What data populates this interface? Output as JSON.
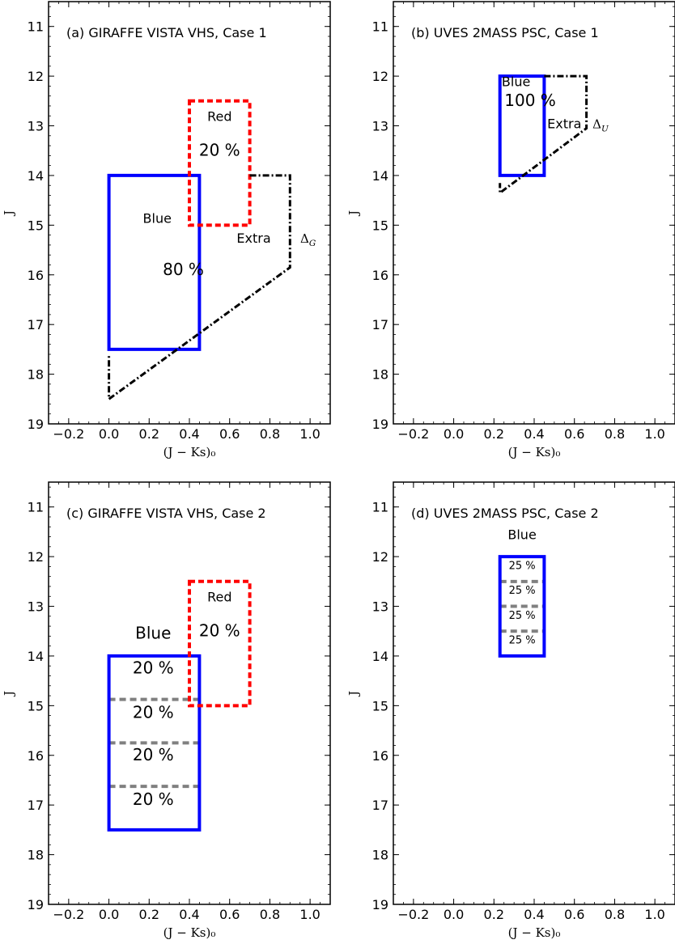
{
  "colors": {
    "blue": "#0000ff",
    "red": "#ff0000",
    "black": "#000000",
    "gray": "#808080"
  },
  "chart_data": [
    {
      "type": "region-diagram",
      "title": "(a) GIRAFFE VISTA VHS, Case 1",
      "xlabel": "(J − Ks)₀",
      "ylabel": "J",
      "xlim": [
        -0.3,
        1.1
      ],
      "ylim": [
        19,
        10.5
      ],
      "xticks": [
        -0.2,
        0.0,
        0.2,
        0.4,
        0.6,
        0.8,
        1.0
      ],
      "yticks": [
        11,
        12,
        13,
        14,
        15,
        16,
        17,
        18,
        19
      ],
      "regions": [
        {
          "name": "Blue",
          "color": "blue",
          "style": "solid",
          "points": [
            [
              0.0,
              14.0
            ],
            [
              0.45,
              14.0
            ],
            [
              0.45,
              17.5
            ],
            [
              0.0,
              17.5
            ]
          ],
          "closed": true
        },
        {
          "name": "Red",
          "color": "red",
          "style": "dashed",
          "points": [
            [
              0.4,
              12.5
            ],
            [
              0.7,
              12.5
            ],
            [
              0.7,
              15.0
            ],
            [
              0.4,
              15.0
            ]
          ],
          "closed": true
        },
        {
          "name": "Extra",
          "color": "black",
          "style": "dashdot",
          "points": [
            [
              0.7,
              14.0
            ],
            [
              0.9,
              14.0
            ],
            [
              0.9,
              15.85
            ],
            [
              0.0,
              18.5
            ],
            [
              0.0,
              17.6
            ]
          ],
          "closed": false
        }
      ],
      "dividers": [],
      "annotations": [
        {
          "text": "Red",
          "x": 0.55,
          "y": 12.9,
          "size": 16,
          "font": "sans"
        },
        {
          "text": "20 %",
          "x": 0.55,
          "y": 13.6,
          "size": 20,
          "font": "sans"
        },
        {
          "text": "Blue",
          "x": 0.24,
          "y": 14.95,
          "size": 16,
          "font": "sans"
        },
        {
          "text": "Extra",
          "x": 0.72,
          "y": 15.35,
          "size": 16,
          "font": "sans"
        },
        {
          "text": "ΔG",
          "x": 0.99,
          "y": 15.35,
          "size": 15,
          "font": "serif",
          "sub": "G"
        },
        {
          "text": "80 %",
          "x": 0.37,
          "y": 16.0,
          "size": 20,
          "font": "sans"
        }
      ]
    },
    {
      "type": "region-diagram",
      "title": "(b) UVES 2MASS PSC, Case 1",
      "xlabel": "(J − Ks)₀",
      "ylabel": "J",
      "xlim": [
        -0.3,
        1.1
      ],
      "ylim": [
        19,
        10.5
      ],
      "xticks": [
        -0.2,
        0.0,
        0.2,
        0.4,
        0.6,
        0.8,
        1.0
      ],
      "yticks": [
        11,
        12,
        13,
        14,
        15,
        16,
        17,
        18,
        19
      ],
      "regions": [
        {
          "name": "Blue",
          "color": "blue",
          "style": "solid",
          "points": [
            [
              0.23,
              12.0
            ],
            [
              0.45,
              12.0
            ],
            [
              0.45,
              14.0
            ],
            [
              0.23,
              14.0
            ]
          ],
          "closed": true
        },
        {
          "name": "Extra",
          "color": "black",
          "style": "dashdot",
          "points": [
            [
              0.45,
              12.0
            ],
            [
              0.66,
              12.0
            ],
            [
              0.66,
              13.05
            ],
            [
              0.23,
              14.35
            ],
            [
              0.23,
              14.15
            ]
          ],
          "closed": false
        }
      ],
      "dividers": [],
      "annotations": [
        {
          "text": "Blue",
          "x": 0.31,
          "y": 12.2,
          "size": 16,
          "font": "sans"
        },
        {
          "text": "100 %",
          "x": 0.38,
          "y": 12.6,
          "size": 20,
          "font": "sans"
        },
        {
          "text": "Extra",
          "x": 0.55,
          "y": 13.05,
          "size": 16,
          "font": "sans"
        },
        {
          "text": "ΔU",
          "x": 0.73,
          "y": 13.05,
          "size": 15,
          "font": "serif",
          "sub": "U"
        }
      ]
    },
    {
      "type": "region-diagram",
      "title": "(c) GIRAFFE VISTA VHS, Case 2",
      "xlabel": "(J − Ks)₀",
      "ylabel": "J",
      "xlim": [
        -0.3,
        1.1
      ],
      "ylim": [
        19,
        10.5
      ],
      "xticks": [
        -0.2,
        0.0,
        0.2,
        0.4,
        0.6,
        0.8,
        1.0
      ],
      "yticks": [
        11,
        12,
        13,
        14,
        15,
        16,
        17,
        18,
        19
      ],
      "regions": [
        {
          "name": "Blue",
          "color": "blue",
          "style": "solid",
          "points": [
            [
              0.0,
              14.0
            ],
            [
              0.45,
              14.0
            ],
            [
              0.45,
              17.5
            ],
            [
              0.0,
              17.5
            ]
          ],
          "closed": true
        },
        {
          "name": "Red",
          "color": "red",
          "style": "dashed",
          "points": [
            [
              0.4,
              12.5
            ],
            [
              0.7,
              12.5
            ],
            [
              0.7,
              15.0
            ],
            [
              0.4,
              15.0
            ]
          ],
          "closed": true
        }
      ],
      "dividers": [
        {
          "y": 14.875,
          "x0": 0.0,
          "x1": 0.45
        },
        {
          "y": 15.75,
          "x0": 0.0,
          "x1": 0.45
        },
        {
          "y": 16.625,
          "x0": 0.0,
          "x1": 0.45
        }
      ],
      "annotations": [
        {
          "text": "Red",
          "x": 0.55,
          "y": 12.9,
          "size": 16,
          "font": "sans"
        },
        {
          "text": "20 %",
          "x": 0.55,
          "y": 13.6,
          "size": 20,
          "font": "sans"
        },
        {
          "text": "Blue",
          "x": 0.22,
          "y": 13.65,
          "size": 20,
          "font": "sans"
        },
        {
          "text": "20 %",
          "x": 0.22,
          "y": 14.35,
          "size": 20,
          "font": "sans"
        },
        {
          "text": "20 %",
          "x": 0.22,
          "y": 15.25,
          "size": 20,
          "font": "sans"
        },
        {
          "text": "20 %",
          "x": 0.22,
          "y": 16.1,
          "size": 20,
          "font": "sans"
        },
        {
          "text": "20 %",
          "x": 0.22,
          "y": 17.0,
          "size": 20,
          "font": "sans"
        }
      ]
    },
    {
      "type": "region-diagram",
      "title": "(d) UVES 2MASS PSC, Case 2",
      "xlabel": "(J − Ks)₀",
      "ylabel": "J",
      "xlim": [
        -0.3,
        1.1
      ],
      "ylim": [
        19,
        10.5
      ],
      "xticks": [
        -0.2,
        0.0,
        0.2,
        0.4,
        0.6,
        0.8,
        1.0
      ],
      "yticks": [
        11,
        12,
        13,
        14,
        15,
        16,
        17,
        18,
        19
      ],
      "regions": [
        {
          "name": "Blue",
          "color": "blue",
          "style": "solid",
          "points": [
            [
              0.23,
              12.0
            ],
            [
              0.45,
              12.0
            ],
            [
              0.45,
              14.0
            ],
            [
              0.23,
              14.0
            ]
          ],
          "closed": true
        }
      ],
      "dividers": [
        {
          "y": 12.5,
          "x0": 0.23,
          "x1": 0.45
        },
        {
          "y": 13.0,
          "x0": 0.23,
          "x1": 0.45
        },
        {
          "y": 13.5,
          "x0": 0.23,
          "x1": 0.45
        }
      ],
      "annotations": [
        {
          "text": "Blue",
          "x": 0.34,
          "y": 11.65,
          "size": 16,
          "font": "sans"
        },
        {
          "text": "25 %",
          "x": 0.34,
          "y": 12.25,
          "size": 13,
          "font": "sans"
        },
        {
          "text": "25 %",
          "x": 0.34,
          "y": 12.75,
          "size": 13,
          "font": "sans"
        },
        {
          "text": "25 %",
          "x": 0.34,
          "y": 13.25,
          "size": 13,
          "font": "sans"
        },
        {
          "text": "25 %",
          "x": 0.34,
          "y": 13.75,
          "size": 13,
          "font": "sans"
        }
      ]
    }
  ]
}
